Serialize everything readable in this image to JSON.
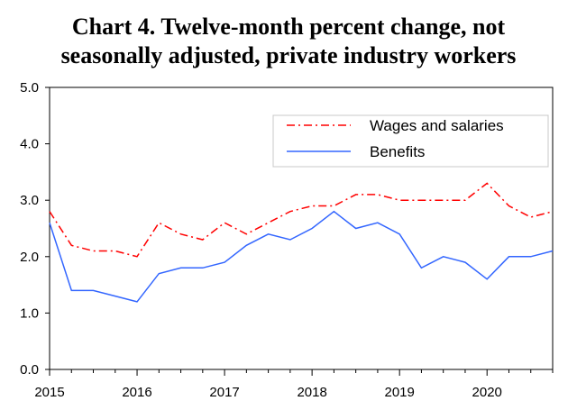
{
  "chart_data": {
    "type": "line",
    "title_line1": "Chart 4. Twelve-month percent change, not",
    "title_line2": "seasonally adjusted, private industry workers",
    "ylim": [
      0,
      5
    ],
    "yticks": [
      "0.0",
      "1.0",
      "2.0",
      "3.0",
      "4.0",
      "5.0"
    ],
    "xticks": [
      "2015",
      "2016",
      "2017",
      "2018",
      "2019",
      "2020"
    ],
    "legend_position": "top-right",
    "grid": false,
    "x": [
      "2015 Q1",
      "2015 Q2",
      "2015 Q3",
      "2015 Q4",
      "2016 Q1",
      "2016 Q2",
      "2016 Q3",
      "2016 Q4",
      "2017 Q1",
      "2017 Q2",
      "2017 Q3",
      "2017 Q4",
      "2018 Q1",
      "2018 Q2",
      "2018 Q3",
      "2018 Q4",
      "2019 Q1",
      "2019 Q2",
      "2019 Q3",
      "2019 Q4",
      "2020 Q1",
      "2020 Q2",
      "2020 Q3",
      "2020 Q4"
    ],
    "series": [
      {
        "name": "Wages and salaries",
        "color": "#ff0000",
        "style": "dash-dot",
        "values": [
          2.8,
          2.2,
          2.1,
          2.1,
          2.0,
          2.6,
          2.4,
          2.3,
          2.6,
          2.4,
          2.6,
          2.8,
          2.9,
          2.9,
          3.1,
          3.1,
          3.0,
          3.0,
          3.0,
          3.0,
          3.3,
          2.9,
          2.7,
          2.8
        ]
      },
      {
        "name": "Benefits",
        "color": "#3366ff",
        "style": "solid",
        "values": [
          2.6,
          1.4,
          1.4,
          1.3,
          1.2,
          1.7,
          1.8,
          1.8,
          1.9,
          2.2,
          2.4,
          2.3,
          2.5,
          2.8,
          2.5,
          2.6,
          2.4,
          1.8,
          2.0,
          1.9,
          1.6,
          2.0,
          2.0,
          2.1
        ]
      }
    ]
  }
}
